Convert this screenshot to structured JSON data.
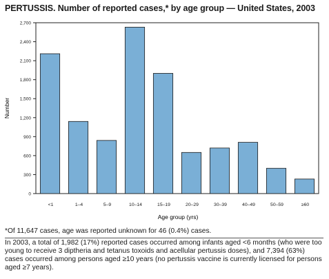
{
  "title": "PERTUSSIS. Number of reported cases,* by age group — United States, 2003",
  "chart_data": {
    "type": "bar",
    "categories": [
      "<1",
      "1–4",
      "5–9",
      "10–14",
      "15–19",
      "20–29",
      "30–39",
      "40–49",
      "50–59",
      "≥60"
    ],
    "values": [
      2210,
      1140,
      840,
      2630,
      1900,
      650,
      720,
      810,
      400,
      230
    ],
    "ylabel": "Number",
    "xlabel": "Age group (yrs)",
    "ylim": [
      0,
      2700
    ],
    "yticks": [
      "0",
      "300",
      "600",
      "900",
      "1,200",
      "1,500",
      "1,800",
      "2,100",
      "2,400",
      "2,700"
    ],
    "bar_color": "#7aafd6",
    "grid": false
  },
  "footnote": "*Of 11,647 cases, age was reported unknown for 46 (0.4%) cases.",
  "note": "In 2003, a total of 1,982 (17%) reported cases occurred among infants aged <6 months (who were too young to receive 3 diptheria and tetanus toxoids and acellular pertussis doses), and 7,394 (63%) cases occurred among persons aged ≥10 years (no pertussis vaccine is currently licensed for persons aged ≥7 years)."
}
